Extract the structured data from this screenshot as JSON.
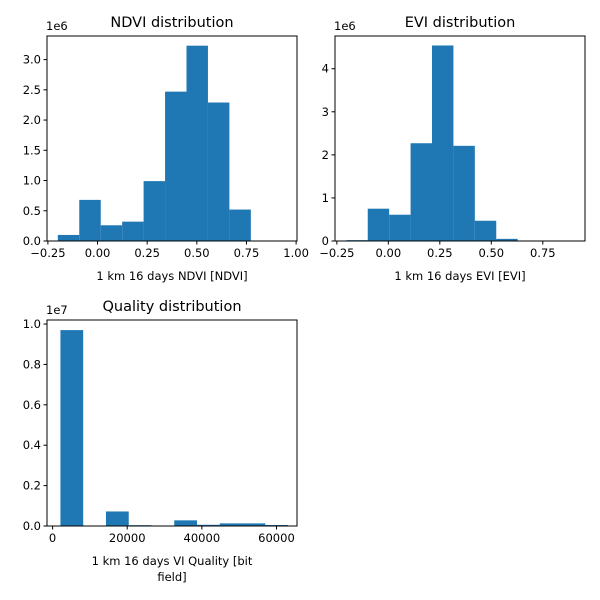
{
  "colors": {
    "bar": "#1f77b4",
    "axis": "#000000",
    "background": "#ffffff"
  },
  "chart_data": [
    {
      "id": "ndvi",
      "type": "bar",
      "title": "NDVI distribution",
      "xlabel": "1 km 16 days NDVI [NDVI]",
      "ylabel": "",
      "offset_label": "1e6",
      "xlim": [
        -0.2545,
        1.0045
      ],
      "ylim": [
        0,
        3.39
      ],
      "xticks": [
        -0.25,
        0.0,
        0.25,
        0.5,
        0.75,
        1.0
      ],
      "xtick_labels": [
        "−0.25",
        "0.00",
        "0.25",
        "0.50",
        "0.75",
        "1.00"
      ],
      "yticks": [
        0,
        0.5,
        1.0,
        1.5,
        2.0,
        2.5,
        3.0
      ],
      "ytick_labels": [
        "0.0",
        "0.5",
        "1.0",
        "1.5",
        "2.0",
        "2.5",
        "3.0"
      ],
      "bin_edges": [
        -0.2,
        -0.092,
        0.016,
        0.124,
        0.232,
        0.34,
        0.448,
        0.556,
        0.664,
        0.772,
        0.88
      ],
      "values": [
        0.1,
        0.68,
        0.26,
        0.32,
        0.99,
        2.47,
        3.23,
        2.29,
        0.52,
        0.0
      ],
      "grid": false
    },
    {
      "id": "evi",
      "type": "bar",
      "title": "EVI distribution",
      "xlabel": "1 km 16 days EVI [EVI]",
      "ylabel": "",
      "offset_label": "1e6",
      "xlim": [
        -0.259,
        0.955
      ],
      "ylim": [
        0,
        4.76
      ],
      "xticks": [
        -0.25,
        0.0,
        0.25,
        0.5,
        0.75
      ],
      "xtick_labels": [
        "−0.25",
        "0.00",
        "0.25",
        "0.50",
        "0.75"
      ],
      "yticks": [
        0,
        1,
        2,
        3,
        4
      ],
      "ytick_labels": [
        "0",
        "1",
        "2",
        "3",
        "4"
      ],
      "bin_edges": [
        -0.204,
        -0.1,
        0.004,
        0.108,
        0.212,
        0.316,
        0.42,
        0.524,
        0.628,
        0.732,
        0.836
      ],
      "values": [
        0.02,
        0.75,
        0.61,
        2.27,
        4.54,
        2.21,
        0.47,
        0.05,
        0.0,
        0.0
      ],
      "grid": false
    },
    {
      "id": "quality",
      "type": "bar",
      "title": "Quality distribution",
      "xlabel": "1 km 16 days VI Quality [bit field]",
      "xlabel_lines": [
        "1 km 16 days VI Quality [bit",
        "field]"
      ],
      "ylabel": "",
      "offset_label": "1e7",
      "xlim": [
        -1500,
        65500
      ],
      "ylim": [
        0,
        1.02
      ],
      "xticks": [
        0,
        20000,
        40000,
        60000
      ],
      "xtick_labels": [
        "0",
        "20000",
        "40000",
        "60000"
      ],
      "yticks": [
        0,
        0.2,
        0.4,
        0.6,
        0.8,
        1.0
      ],
      "ytick_labels": [
        "0.0",
        "0.2",
        "0.4",
        "0.6",
        "0.8",
        "1.0"
      ],
      "bin_edges": [
        2100,
        8200,
        14300,
        20400,
        26500,
        32600,
        38700,
        44800,
        50900,
        57000,
        63100
      ],
      "values": [
        0.97,
        0.0,
        0.072,
        0.004,
        0.0,
        0.028,
        0.006,
        0.013,
        0.013,
        0.005
      ],
      "grid": false
    }
  ]
}
